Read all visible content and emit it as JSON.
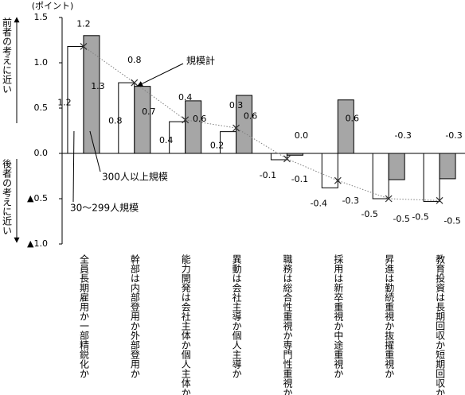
{
  "chart_data": {
    "type": "bar",
    "y_axis_label": "(ポイント)",
    "upper_label": "前者の考えに近い",
    "lower_label": "後者の考えに近い",
    "categories": [
      "全員長期雇用か一部精鋭化か",
      "幹部は内部登用か外部登用か",
      "能力開発は会社主体か個人主体か",
      "異動は会社主導か個人主導か",
      "職務は総合性重視か専門性重視か",
      "採用は新卒重視か中途重視か",
      "昇進は勤続重視か抜擢重視か",
      "教育投資は長期回収か短期回収か"
    ],
    "series": [
      {
        "name": "30～299人規模",
        "color": "#ffffff",
        "values": [
          1.18,
          0.78,
          0.35,
          0.24,
          -0.07,
          -0.38,
          -0.5,
          -0.53
        ],
        "value_labels": [
          "1.2",
          "0.8",
          "0.4",
          "0.2",
          "-0.1",
          "-0.4",
          "-0.5",
          "-0.5"
        ]
      },
      {
        "name": "300人以上規模",
        "color": "#a6a6a6",
        "values": [
          1.3,
          0.74,
          0.58,
          0.64,
          -0.02,
          0.59,
          -0.29,
          -0.28
        ],
        "value_labels": [
          "1.3",
          "0.7",
          "0.6",
          "0.6",
          "0.0",
          "0.6",
          "-0.3",
          "-0.3"
        ]
      },
      {
        "name": "規模計",
        "type": "line",
        "color": "#808080",
        "values": [
          1.18,
          0.78,
          0.37,
          0.28,
          -0.06,
          -0.3,
          -0.5,
          -0.52
        ],
        "value_labels": [
          "1.2",
          "0.8",
          "0.4",
          "0.3",
          "-0.1",
          "-0.3",
          "-0.5",
          "-0.5"
        ]
      }
    ],
    "ylim": [
      -1,
      1.5
    ],
    "yticks": [
      {
        "value": -1,
        "label": "▲1.0"
      },
      {
        "value": -0.5,
        "label": "▲0.5"
      },
      {
        "value": 0,
        "label": "0.0"
      },
      0.5,
      {
        "value": 1,
        "label": "1.0"
      },
      1.5
    ]
  }
}
